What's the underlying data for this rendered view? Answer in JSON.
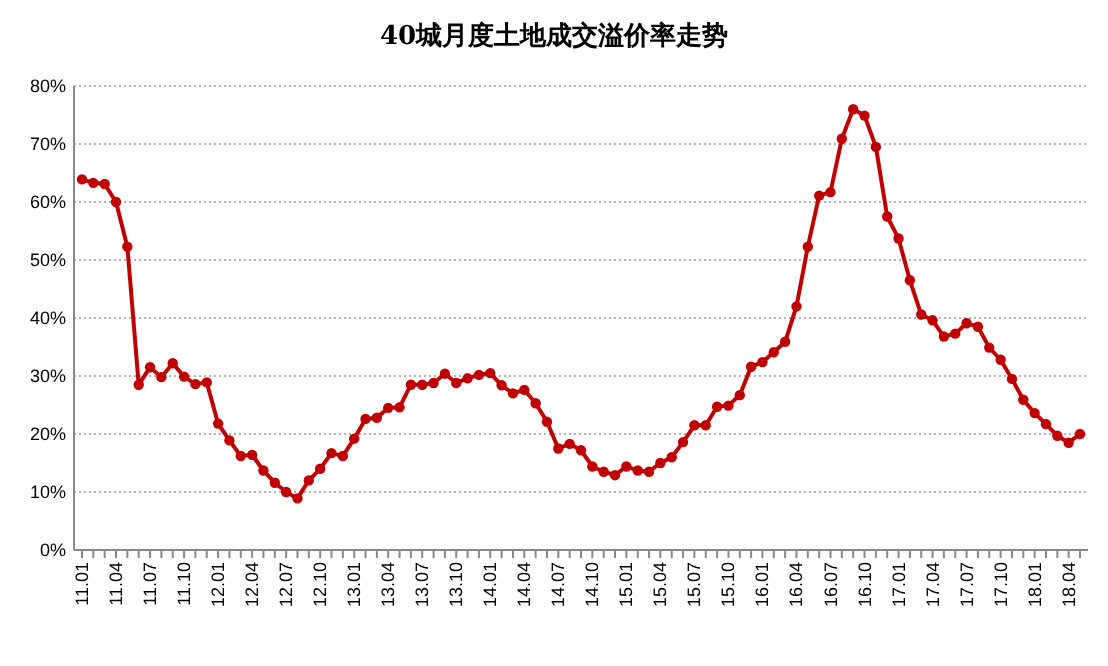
{
  "chart_data": {
    "type": "line",
    "title": "40城月度土地成交溢价率走势",
    "categories": [
      "11.01",
      null,
      null,
      "11.04",
      null,
      null,
      "11.07",
      null,
      null,
      "11.10",
      null,
      null,
      "12.01",
      null,
      null,
      "12.04",
      null,
      null,
      "12.07",
      null,
      null,
      "12.10",
      null,
      null,
      "13.01",
      null,
      null,
      "13.04",
      null,
      null,
      "13.07",
      null,
      null,
      "13.10",
      null,
      null,
      "14.01",
      null,
      null,
      "14.04",
      null,
      null,
      "14.07",
      null,
      null,
      "14.10",
      null,
      null,
      "15.01",
      null,
      null,
      "15.04",
      null,
      null,
      "15.07",
      null,
      null,
      "15.10",
      null,
      null,
      "16.01",
      null,
      null,
      "16.04",
      null,
      null,
      "16.07",
      null,
      null,
      "16.10",
      null,
      null,
      "17.01",
      null,
      null,
      "17.04",
      null,
      null,
      "17.07",
      null,
      null,
      "17.10",
      null,
      null,
      "18.01",
      null,
      null,
      "18.04",
      null
    ],
    "series": [
      {
        "color": "#c00000",
        "values": [
          63.9,
          63.3,
          63.1,
          60,
          52.3,
          28.5,
          31.5,
          29.8,
          32.2,
          29.9,
          28.6,
          28.9,
          21.8,
          18.9,
          16.2,
          16.4,
          13.7,
          11.6,
          10,
          8.9,
          12,
          14,
          16.7,
          16.2,
          19.2,
          22.6,
          22.8,
          24.5,
          24.6,
          28.5,
          28.5,
          28.8,
          30.4,
          28.8,
          29.6,
          30.2,
          30.5,
          28.4,
          27,
          27.6,
          25.3,
          22.1,
          17.5,
          18.3,
          17.2,
          14.4,
          13.5,
          12.9,
          14.4,
          13.7,
          13.5,
          15,
          16,
          18.6,
          21.5,
          21.5,
          24.7,
          24.9,
          26.7,
          31.6,
          32.4,
          34.1,
          35.9,
          42,
          52.3,
          61.1,
          61.7,
          70.9,
          76,
          74.9,
          69.5,
          57.5,
          53.7,
          46.5,
          40.6,
          39.6,
          36.8,
          37.3,
          39.1,
          38.5,
          34.9,
          32.8,
          29.5,
          25.9,
          23.6,
          21.7,
          19.7,
          18.5,
          20
        ]
      }
    ],
    "ylim": [
      0,
      80
    ],
    "yticks": [
      {
        "value": 0,
        "label": "0%"
      },
      {
        "value": 10,
        "label": "10%"
      },
      {
        "value": 20,
        "label": "20%"
      },
      {
        "value": 30,
        "label": "30%"
      },
      {
        "value": 40,
        "label": "40%"
      },
      {
        "value": 50,
        "label": "50%"
      },
      {
        "value": 60,
        "label": "60%"
      },
      {
        "value": 70,
        "label": "70%"
      },
      {
        "value": 80,
        "label": "80%"
      }
    ],
    "grid": "y",
    "marker": "circle",
    "line_style": "solid"
  }
}
